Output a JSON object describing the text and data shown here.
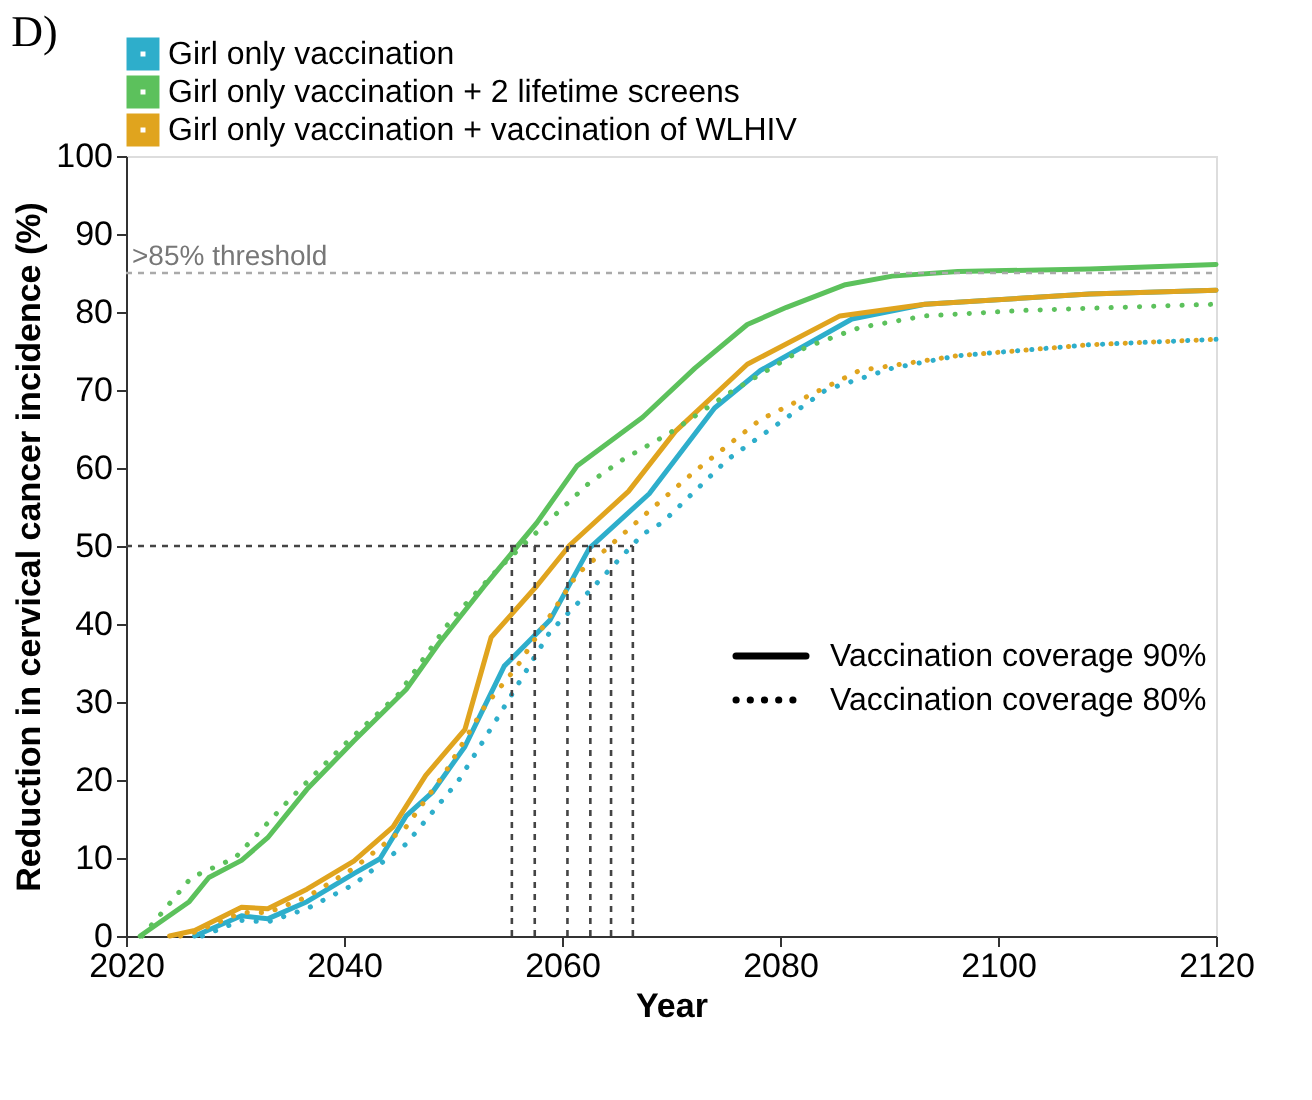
{
  "chart_data": {
    "type": "line",
    "title": "D)",
    "xlabel": "Year",
    "ylabel": "Reduction in cervical cancer incidence (%)",
    "xlim": [
      2020,
      2120
    ],
    "ylim": [
      0,
      100
    ],
    "xticks": [
      2020,
      2040,
      2060,
      2080,
      2100,
      2120
    ],
    "yticks": [
      0,
      10,
      20,
      30,
      40,
      50,
      60,
      70,
      80,
      90,
      100
    ],
    "grid": false,
    "legend": "top",
    "annotations": [
      "Vaccination coverage 90%",
      "Vaccination coverage 80%"
    ],
    "ref_lines": [
      {
        "axis": "y",
        "value": 85,
        "label": ">85% threshold",
        "color": "#aaaaaa",
        "line_style": "dashed"
      }
    ],
    "series": [
      {
        "name": "Girl only vaccination",
        "color": "#2eaecb",
        "line_style": "solid",
        "x": [
          2026.3,
          2030.6,
          2033,
          2036.6,
          2040.9,
          2043.3,
          2045.7,
          2048.1,
          2051.1,
          2054.7,
          2058.9,
          2062.5,
          2068,
          2074,
          2078.2,
          2086.6,
          2093.3,
          2108.4,
          2120
        ],
        "values": [
          0,
          2.6,
          2.2,
          4.4,
          8,
          9.9,
          15.4,
          18.4,
          24.3,
          34.6,
          40.5,
          49.7,
          56.7,
          67.7,
          72.5,
          79.1,
          81,
          82.3,
          82.8
        ]
      },
      {
        "name": "Girl only vaccination + 2 lifetime screens",
        "color": "#5cc15c",
        "line_style": "solid",
        "x": [
          2021.3,
          2025.8,
          2027.6,
          2030.6,
          2033,
          2036.6,
          2040.9,
          2045.7,
          2048.7,
          2052.9,
          2057.7,
          2061.4,
          2067.4,
          2072.2,
          2077,
          2080.6,
          2086,
          2090.3,
          2096.3,
          2108.4,
          2120
        ],
        "values": [
          0,
          4.4,
          7.5,
          9.7,
          12.6,
          18.8,
          25,
          31.6,
          37.5,
          44.9,
          53,
          60.3,
          66.5,
          72.8,
          78.4,
          80.6,
          83.5,
          84.6,
          85.2,
          85.5,
          86.1
        ]
      },
      {
        "name": "Girl only vaccination + vaccination of WLHIV",
        "color": "#e0a41e",
        "line_style": "solid",
        "x": [
          2024,
          2026.3,
          2030.6,
          2033,
          2036.6,
          2040.9,
          2044.5,
          2047.5,
          2051.1,
          2053.5,
          2057.7,
          2060.7,
          2066.1,
          2070.4,
          2077,
          2085.5,
          2093.3,
          2108.4,
          2120
        ],
        "values": [
          0,
          0.7,
          3.7,
          3.5,
          6,
          9.6,
          14,
          20.6,
          26.5,
          38.3,
          44.9,
          50.1,
          57,
          64.7,
          73.3,
          79.5,
          81,
          82.3,
          82.8
        ]
      },
      {
        "color": "#2eaecb",
        "line_style": "dotted",
        "x": [
          2027,
          2030.6,
          2033,
          2036.6,
          2040.9,
          2045.7,
          2050.5,
          2054.1,
          2058.9,
          2062.5,
          2067.4,
          2069.2,
          2075.2,
          2084.2,
          2090.3,
          2096.3,
          2108.4,
          2120
        ],
        "values": [
          0,
          2,
          1.8,
          3.5,
          6.6,
          11.8,
          19.9,
          28,
          39,
          44.2,
          51.5,
          53,
          61.1,
          70,
          72.8,
          74.4,
          75.8,
          76.5
        ]
      },
      {
        "color": "#5cc15c",
        "line_style": "dotted",
        "x": [
          2021.5,
          2026,
          2030,
          2035,
          2040,
          2045,
          2049.8,
          2054.1,
          2058.3,
          2062.5,
          2065.6,
          2069.8,
          2075.2,
          2082.4,
          2087.3,
          2093.3,
          2102.3,
          2120
        ],
        "values": [
          0,
          7.5,
          10,
          17.5,
          24.5,
          31,
          40.5,
          47,
          52.6,
          58.1,
          61.1,
          64.4,
          69.5,
          75.5,
          78,
          79.5,
          80.2,
          81
        ]
      },
      {
        "color": "#e0a41e",
        "line_style": "dotted",
        "x": [
          2025,
          2026.3,
          2030.6,
          2033,
          2036.6,
          2040.9,
          2045.7,
          2049.3,
          2052.9,
          2055.9,
          2061.4,
          2063.8,
          2068,
          2072.2,
          2078.2,
          2087.3,
          2096.3,
          2108.4,
          2120
        ],
        "values": [
          0,
          0.5,
          3,
          3,
          5,
          8.7,
          14,
          21,
          29.4,
          34.6,
          46.4,
          49.3,
          54.5,
          59.6,
          66.2,
          72.5,
          74.4,
          75.8,
          76.5
        ]
      },
      {
        "color": "#444444",
        "line_style": "dashed",
        "x": [
          2020,
          2066.5
        ],
        "values": [
          50,
          50
        ]
      },
      {
        "color": "#444444",
        "line_style": "dashed",
        "x": [
          2055.4,
          2055.4
        ],
        "values": [
          0,
          50
        ]
      },
      {
        "color": "#444444",
        "line_style": "dashed",
        "x": [
          2057.5,
          2057.5
        ],
        "values": [
          0,
          50
        ]
      },
      {
        "color": "#444444",
        "line_style": "dashed",
        "x": [
          2060.5,
          2060.5
        ],
        "values": [
          0,
          50
        ]
      },
      {
        "color": "#444444",
        "line_style": "dashed",
        "x": [
          2062.6,
          2062.6
        ],
        "values": [
          0,
          50
        ]
      },
      {
        "color": "#444444",
        "line_style": "dashed",
        "x": [
          2064.5,
          2064.5
        ],
        "values": [
          0,
          50
        ]
      },
      {
        "color": "#444444",
        "line_style": "dashed",
        "x": [
          2066.5,
          2066.5
        ],
        "values": [
          0,
          50
        ]
      }
    ]
  }
}
